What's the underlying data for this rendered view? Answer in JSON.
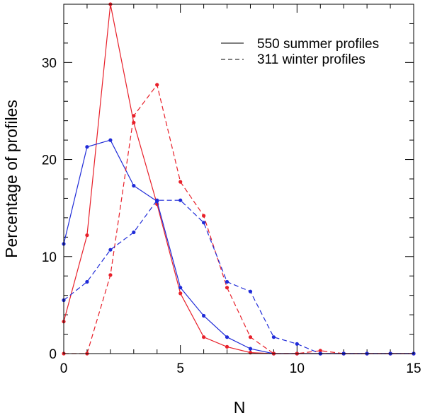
{
  "chart_data": {
    "type": "line",
    "title": "",
    "xlabel": "N",
    "ylabel": "Percentage of profiles",
    "xlim": [
      0,
      15
    ],
    "ylim": [
      0,
      36
    ],
    "xticks": [
      0,
      5,
      10,
      15
    ],
    "yticks": [
      0,
      10,
      20,
      30
    ],
    "legend": {
      "placement": "top-right",
      "entries": [
        {
          "label": "550 summer profiles",
          "linestyle": "solid"
        },
        {
          "label": "311 winter profiles",
          "linestyle": "dashed"
        }
      ]
    },
    "series": [
      {
        "name": "summer-red",
        "color": "#e8202a",
        "linestyle": "solid",
        "x": [
          0,
          1,
          2,
          3,
          4,
          5,
          6,
          7,
          8,
          9,
          10,
          11,
          12,
          13,
          14,
          15
        ],
        "y": [
          3.3,
          12.2,
          36.0,
          23.8,
          15.4,
          6.2,
          1.7,
          0.7,
          0.1,
          0,
          0,
          0,
          0,
          0,
          0,
          0
        ]
      },
      {
        "name": "summer-blue",
        "color": "#1f2bd8",
        "linestyle": "solid",
        "x": [
          0,
          1,
          2,
          3,
          4,
          5,
          6,
          7,
          8,
          9,
          10,
          11,
          12,
          13,
          14,
          15
        ],
        "y": [
          11.3,
          21.3,
          22.0,
          17.3,
          15.7,
          6.8,
          3.9,
          1.7,
          0.5,
          0,
          0,
          0,
          0,
          0,
          0,
          0
        ]
      },
      {
        "name": "winter-red",
        "color": "#e8202a",
        "linestyle": "dashed",
        "x": [
          0,
          1,
          2,
          3,
          4,
          5,
          6,
          7,
          8,
          9,
          10,
          11,
          12,
          13,
          14,
          15
        ],
        "y": [
          0,
          0,
          8.1,
          24.5,
          27.7,
          17.7,
          14.2,
          6.8,
          1.7,
          0,
          0,
          0.3,
          0,
          0,
          0,
          0
        ]
      },
      {
        "name": "winter-blue",
        "color": "#1f2bd8",
        "linestyle": "dashed",
        "x": [
          0,
          1,
          2,
          3,
          4,
          5,
          6,
          7,
          8,
          9,
          10,
          11,
          12,
          13,
          14,
          15
        ],
        "y": [
          5.5,
          7.4,
          10.7,
          12.5,
          15.8,
          15.8,
          13.5,
          7.4,
          6.4,
          1.7,
          1.0,
          0,
          0,
          0,
          0,
          0
        ]
      }
    ]
  }
}
